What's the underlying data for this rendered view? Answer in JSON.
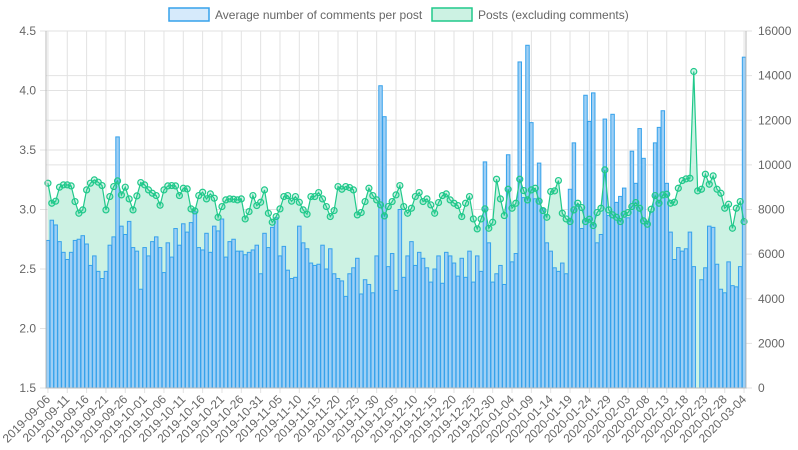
{
  "chart_data": {
    "type": "bar+line",
    "title": "",
    "legend_position": "top-center",
    "colors": {
      "bars_fill": "#9ecff5",
      "bars_stroke": "#36a2eb",
      "line": "#21c98b",
      "area_fill": "#ccf2e3",
      "grid": "#e2e2e2",
      "text": "#666666"
    },
    "legend": [
      {
        "label": "Average number of comments per post",
        "series": "avg_comments"
      },
      {
        "label": "Posts (excluding comments)",
        "series": "posts"
      }
    ],
    "y_left": {
      "min": 1.5,
      "max": 4.5,
      "step": 0.5,
      "ticks": [
        "1.5",
        "2.0",
        "2.5",
        "3.0",
        "3.5",
        "4.0",
        "4.5"
      ]
    },
    "y_right": {
      "min": 0,
      "max": 16000,
      "step": 2000,
      "ticks": [
        "0",
        "2000",
        "4000",
        "6000",
        "8000",
        "10000",
        "12000",
        "14000",
        "16000"
      ]
    },
    "x_start": "2019-09-06",
    "x_end": "2020-03-04",
    "x_count": 181,
    "x_tick_every": 5,
    "x_tick_labels": [
      "2019-09-06",
      "2019-09-11",
      "2019-09-16",
      "2019-09-21",
      "2019-09-26",
      "2019-10-01",
      "2019-10-06",
      "2019-10-11",
      "2019-10-16",
      "2019-10-21",
      "2019-10-26",
      "2019-10-31",
      "2019-11-05",
      "2019-11-10",
      "2019-11-15",
      "2019-11-20",
      "2019-11-25",
      "2019-11-30",
      "2019-12-05",
      "2019-12-10",
      "2019-12-15",
      "2019-12-20",
      "2019-12-25",
      "2019-12-30",
      "2020-01-04",
      "2020-01-09",
      "2020-01-14",
      "2020-01-19",
      "2020-01-24",
      "2020-01-29",
      "2020-02-03",
      "2020-02-08",
      "2020-02-13",
      "2020-02-18",
      "2020-02-23",
      "2020-02-28",
      "2020-03-04"
    ],
    "series": [
      {
        "name": "Average number of comments per post",
        "key": "avg_comments",
        "type": "bar",
        "axis": "left",
        "values": [
          2.74,
          2.91,
          2.87,
          2.73,
          2.64,
          2.58,
          2.64,
          2.74,
          2.75,
          2.78,
          2.71,
          2.53,
          2.61,
          2.48,
          2.42,
          2.48,
          2.7,
          2.77,
          3.61,
          2.86,
          2.79,
          2.9,
          2.68,
          2.65,
          2.33,
          2.68,
          2.61,
          2.73,
          2.77,
          2.68,
          2.47,
          2.72,
          2.6,
          2.84,
          2.7,
          2.88,
          2.81,
          2.89,
          2.98,
          2.68,
          2.66,
          2.8,
          2.64,
          2.86,
          2.82,
          2.92,
          2.6,
          2.73,
          2.75,
          2.65,
          2.65,
          2.62,
          2.64,
          2.66,
          2.7,
          2.46,
          2.8,
          2.68,
          2.85,
          2.93,
          2.61,
          2.69,
          2.49,
          2.42,
          2.43,
          2.86,
          2.72,
          2.67,
          2.55,
          2.53,
          2.54,
          2.7,
          2.5,
          2.67,
          2.46,
          2.42,
          2.4,
          2.27,
          2.46,
          2.51,
          2.59,
          2.29,
          2.41,
          2.37,
          2.3,
          2.61,
          4.04,
          3.78,
          2.52,
          2.63,
          2.32,
          3.0,
          2.43,
          2.61,
          2.73,
          2.53,
          2.64,
          2.59,
          2.51,
          2.39,
          2.5,
          2.61,
          2.38,
          2.64,
          2.61,
          2.55,
          2.44,
          2.59,
          2.43,
          2.65,
          2.39,
          2.61,
          2.48,
          3.4,
          2.72,
          2.39,
          2.46,
          2.53,
          2.37,
          3.46,
          2.56,
          2.63,
          4.24,
          3.1,
          4.38,
          3.73,
          3.09,
          3.39,
          3.01,
          2.72,
          2.65,
          2.51,
          2.48,
          2.55,
          2.46,
          3.17,
          3.56,
          3.04,
          2.84,
          3.96,
          3.74,
          3.98,
          2.72,
          2.79,
          3.76,
          2.95,
          3.8,
          3.06,
          3.11,
          3.18,
          2.93,
          3.49,
          3.22,
          3.68,
          3.43,
          2.9,
          2.98,
          3.56,
          3.69,
          3.83,
          3.22,
          2.81,
          2.58,
          2.68,
          2.65,
          2.67,
          2.81,
          2.52,
          1.5,
          2.41,
          2.51,
          2.86,
          2.85,
          2.54,
          2.33,
          2.3,
          2.56,
          2.36,
          2.35,
          2.52,
          4.28
        ]
      },
      {
        "name": "Posts (excluding comments)",
        "key": "posts",
        "type": "line",
        "axis": "right",
        "values": [
          9179,
          8281,
          8372,
          8999,
          9103,
          9103,
          9058,
          8355,
          7832,
          7982,
          8878,
          9179,
          9327,
          9223,
          9073,
          7982,
          8580,
          9028,
          9282,
          8654,
          8999,
          8475,
          7982,
          8609,
          9208,
          9103,
          8878,
          8729,
          8625,
          8191,
          8878,
          9058,
          9073,
          9058,
          8625,
          8953,
          8923,
          8027,
          7937,
          8625,
          8774,
          8475,
          8699,
          8505,
          7653,
          8131,
          8430,
          8475,
          8460,
          8430,
          8475,
          7578,
          7907,
          8625,
          8176,
          8325,
          8878,
          7832,
          7429,
          7683,
          8027,
          8580,
          8625,
          8372,
          8580,
          8325,
          7982,
          7788,
          8580,
          8580,
          8759,
          8475,
          8131,
          7683,
          7952,
          9028,
          8908,
          9028,
          8983,
          8878,
          7758,
          7862,
          8355,
          8953,
          8625,
          8430,
          8206,
          7713,
          8131,
          8355,
          8654,
          9073,
          8131,
          7832,
          8057,
          8580,
          8759,
          8355,
          8475,
          8206,
          7832,
          8310,
          8625,
          8699,
          8430,
          8281,
          8176,
          7683,
          8281,
          8580,
          7578,
          7130,
          7578,
          8027,
          7160,
          7429,
          9357,
          8475,
          7728,
          8908,
          8057,
          8281,
          9357,
          8848,
          8430,
          8878,
          8953,
          8372,
          7952,
          7653,
          8804,
          8834,
          9297,
          7832,
          7578,
          7459,
          7982,
          8281,
          8087,
          7459,
          7564,
          7280,
          7862,
          8057,
          9776,
          7982,
          7758,
          7653,
          7459,
          7788,
          7862,
          8131,
          8310,
          8057,
          7489,
          7340,
          8012,
          8625,
          8281,
          8654,
          8684,
          8281,
          8325,
          8953,
          9297,
          9372,
          9402,
          14185,
          8834,
          8908,
          9581,
          9133,
          9506,
          8908,
          8729,
          8057,
          8236,
          7160,
          8057,
          8355,
          7459
        ]
      }
    ]
  }
}
